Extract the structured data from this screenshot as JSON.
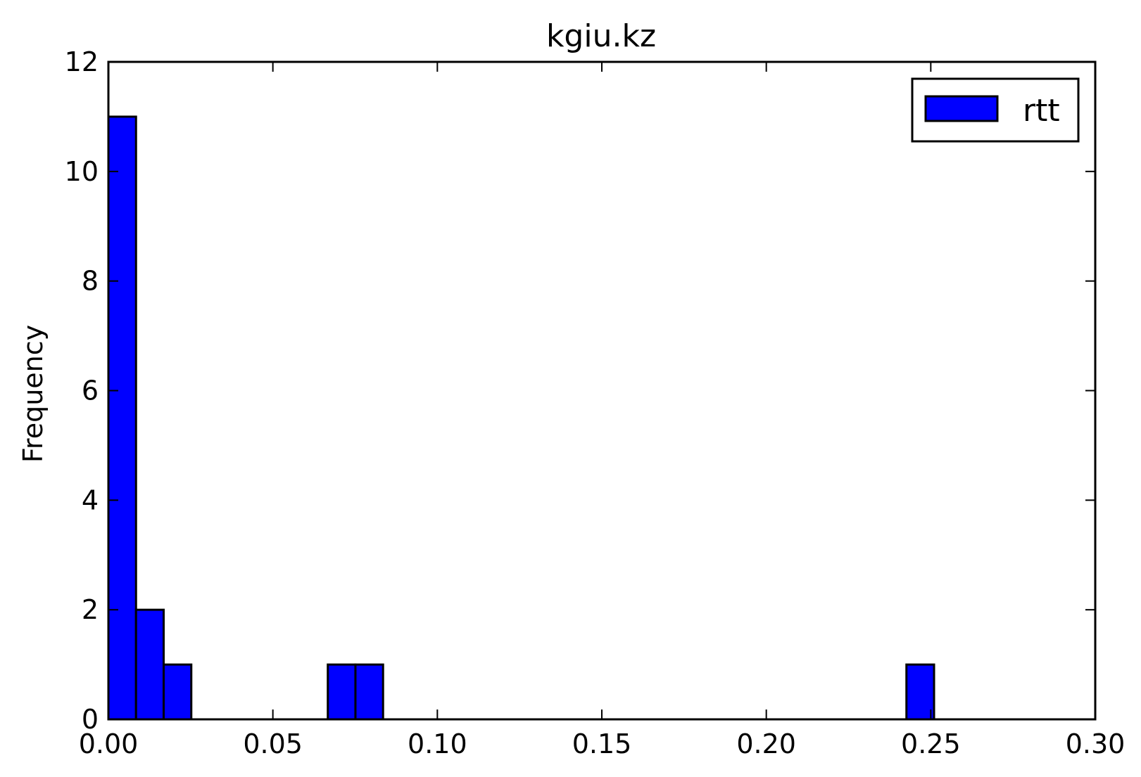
{
  "chart_data": {
    "type": "bar",
    "subtype": "histogram",
    "title": "kgiu.kz",
    "xlabel": "",
    "ylabel": "Frequency",
    "xlim": [
      0.0,
      0.3
    ],
    "ylim": [
      0,
      12
    ],
    "x_ticks": [
      "0.00",
      "0.05",
      "0.10",
      "0.15",
      "0.20",
      "0.25",
      "0.30"
    ],
    "y_ticks": [
      "0",
      "2",
      "4",
      "6",
      "8",
      "10",
      "12"
    ],
    "grid": false,
    "legend": {
      "position": "top-right",
      "entries": [
        "rtt"
      ]
    },
    "series": [
      {
        "name": "rtt",
        "color": "#0000ff",
        "bins": [
          {
            "x0": 0.0,
            "x1": 0.0084,
            "count": 11
          },
          {
            "x0": 0.0084,
            "x1": 0.0168,
            "count": 2
          },
          {
            "x0": 0.0168,
            "x1": 0.0252,
            "count": 1
          },
          {
            "x0": 0.0667,
            "x1": 0.0751,
            "count": 1
          },
          {
            "x0": 0.0751,
            "x1": 0.0835,
            "count": 1
          },
          {
            "x0": 0.2426,
            "x1": 0.251,
            "count": 1
          }
        ]
      }
    ]
  }
}
